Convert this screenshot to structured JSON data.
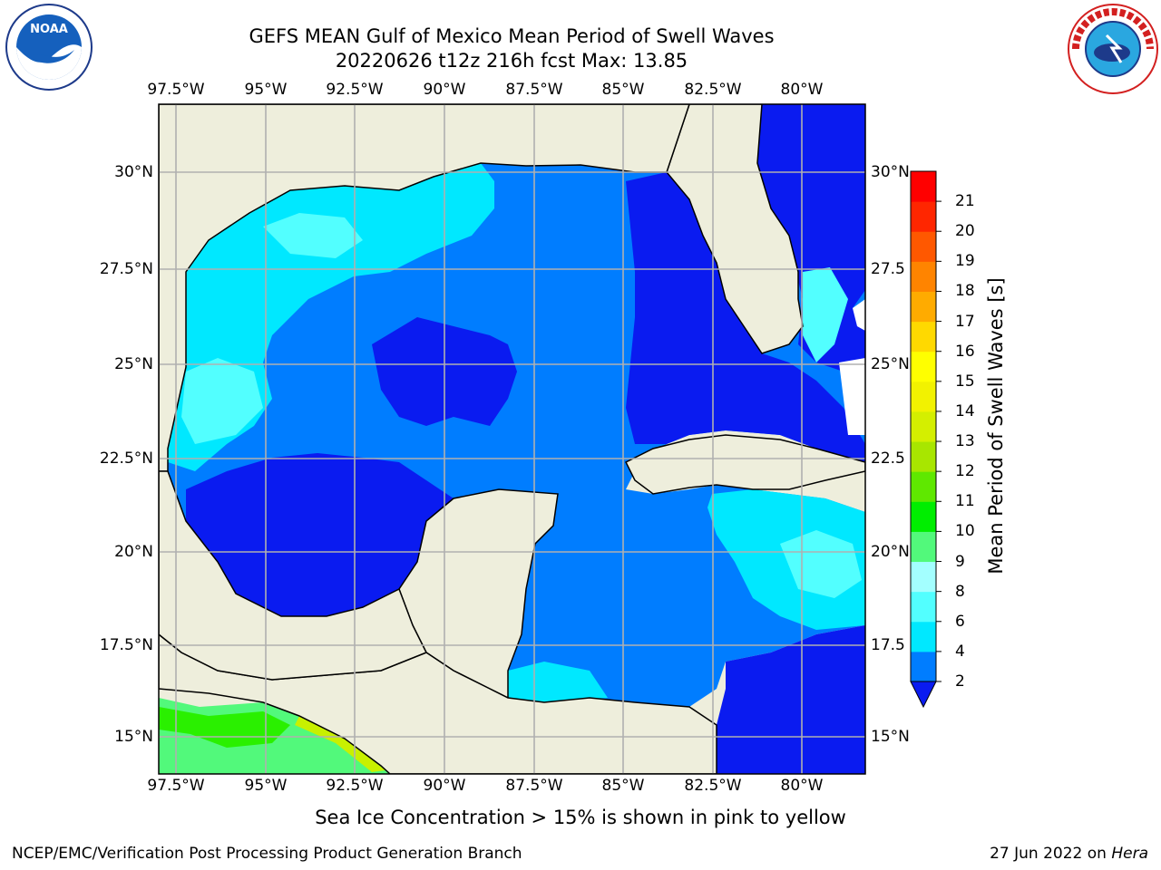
{
  "title_line1": "GEFS MEAN Gulf of Mexico Mean Period of Swell Waves",
  "title_line2": "20220626 t12z 216h fcst   Max: 13.85",
  "logos": {
    "left": "NOAA",
    "right": "NATIONAL WEATHER SERVICE"
  },
  "lon_ticks": [
    "97.5°W",
    "95°W",
    "92.5°W",
    "90°W",
    "87.5°W",
    "85°W",
    "82.5°W",
    "80°W"
  ],
  "lat_ticks_left": [
    "30°N",
    "27.5°N",
    "25°N",
    "22.5°N",
    "20°N",
    "17.5°N",
    "15°N"
  ],
  "lat_ticks_right": [
    "30°N",
    "27.5",
    "25°N",
    "22.5",
    "20°N",
    "17.5",
    "15°N"
  ],
  "colorbar": {
    "label": "Mean Period of Swell Waves [s]",
    "ticks": [
      "2",
      "4",
      "6",
      "8",
      "9",
      "10",
      "11",
      "12",
      "13",
      "14",
      "15",
      "16",
      "17",
      "18",
      "19",
      "20",
      "21"
    ],
    "colors": [
      "#0a1bf0",
      "#007dff",
      "#00e8ff",
      "#52ffff",
      "#a3ffff",
      "#52f97b",
      "#00ee00",
      "#5fe800",
      "#a8e600",
      "#d4ef00",
      "#f2f200",
      "#ffff00",
      "#ffd900",
      "#ffab00",
      "#ff8400",
      "#ff5800",
      "#ff2600",
      "#ff0000"
    ]
  },
  "map": {
    "land_color": "#eeeedc",
    "ocean_colors": {
      "dark_blue": "#0a1bf0",
      "mid_blue": "#007dff",
      "cyan": "#00e8ff",
      "light_cyan": "#52ffff",
      "green": "#2af000",
      "light_green": "#52f97b"
    }
  },
  "note": "Sea Ice Concentration > 15% is shown in pink to yellow",
  "footer_left": "NCEP/EMC/Verification Post Processing Product Generation Branch",
  "footer_date": "27 Jun 2022 on ",
  "footer_host": "Hera"
}
